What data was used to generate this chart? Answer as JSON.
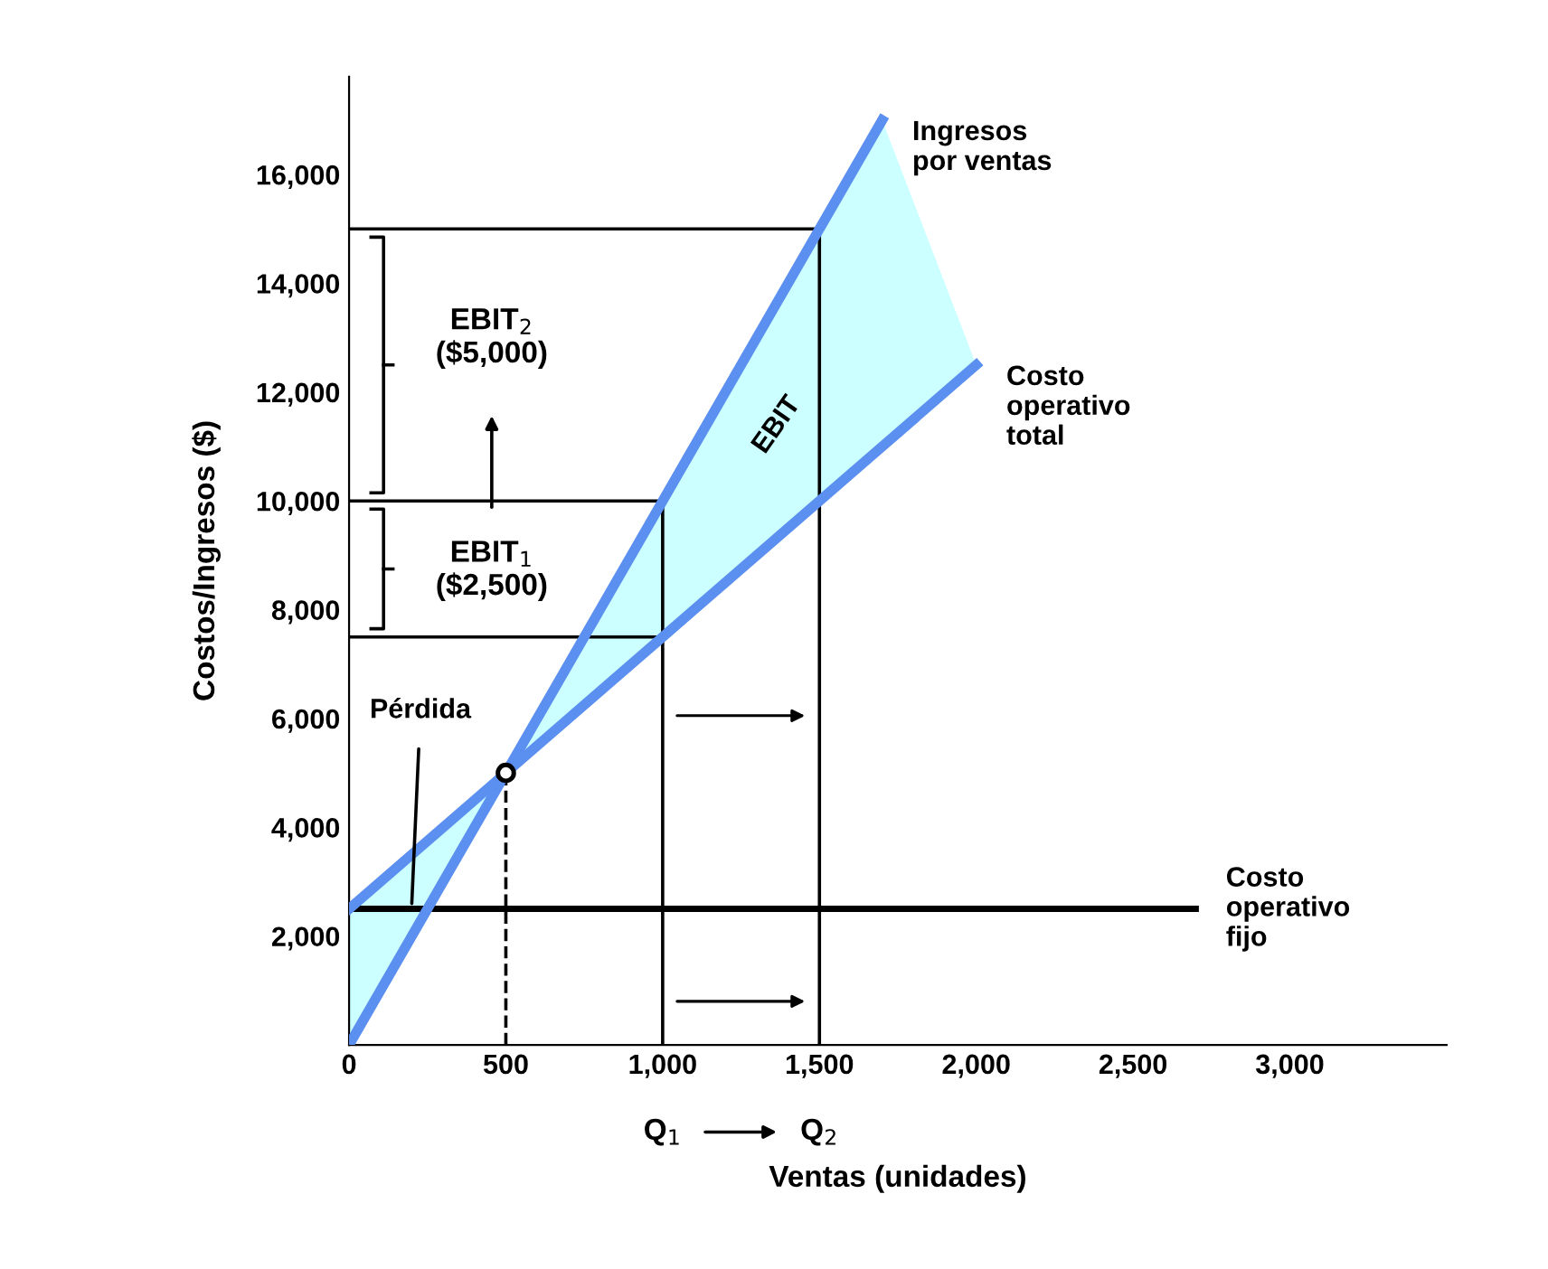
{
  "chart_data": {
    "type": "line",
    "xlabel": "Ventas (unidades)",
    "ylabel": "Costos/Ingresos ($)",
    "xlim": [
      0,
      3500
    ],
    "ylim": [
      0,
      17800
    ],
    "xticks": [
      0,
      500,
      {
        "value": 1000,
        "label": "1,000"
      },
      {
        "value": 1500,
        "label": "1,500"
      },
      {
        "value": 2000,
        "label": "2,000"
      },
      {
        "value": 2500,
        "label": "2,500"
      },
      {
        "value": 3000,
        "label": "3,000"
      }
    ],
    "yticks": [
      {
        "value": 2000,
        "label": "2,000"
      },
      {
        "value": 4000,
        "label": "4,000"
      },
      {
        "value": 6000,
        "label": "6,000"
      },
      {
        "value": 8000,
        "label": "8,000"
      },
      {
        "value": 10000,
        "label": "10,000"
      },
      {
        "value": 12000,
        "label": "12,000"
      },
      {
        "value": 14000,
        "label": "14,000"
      },
      {
        "value": 16000,
        "label": "16,000"
      }
    ],
    "grid": false,
    "legend": false,
    "series": [
      {
        "type": "area",
        "color": "#ccffff",
        "x": [
          0,
          500,
          0
        ],
        "values": [
          2500,
          5000,
          0
        ]
      },
      {
        "type": "area",
        "color": "#ccffff",
        "x": [
          500,
          1000,
          1500,
          1700,
          2000,
          1500,
          1000
        ],
        "values": [
          5000,
          10000,
          15000,
          17000,
          12500,
          10000,
          7500
        ]
      },
      {
        "color": "#000000",
        "x": [
          0,
          1500,
          1500
        ],
        "values": [
          15000,
          15000,
          0
        ]
      },
      {
        "color": "#000000",
        "x": [
          0,
          1000,
          1000
        ],
        "values": [
          10000,
          10000,
          0
        ]
      },
      {
        "color": "#000000",
        "x": [
          0,
          1000
        ],
        "values": [
          7500,
          7500
        ]
      },
      {
        "color": "#000000",
        "line_style": "dashed",
        "x": [
          500,
          500
        ],
        "values": [
          0,
          5000
        ]
      },
      {
        "name": "Costo\noperativo\nfijo",
        "color": "#000000",
        "x": [
          0,
          2700
        ],
        "values": [
          2500,
          2500
        ]
      },
      {
        "name": "Ingresos\npor ventas",
        "color": "#5b8ff0",
        "x": [
          0,
          500,
          1000,
          1500,
          1700
        ],
        "values": [
          0,
          5000,
          10000,
          15000,
          17000
        ]
      },
      {
        "name": "Costo\noperativo\ntotal",
        "color": "#5b8ff0",
        "x": [
          0,
          500,
          1000,
          1500,
          2000
        ],
        "values": [
          2500,
          5000,
          7500,
          10000,
          12500
        ]
      },
      {
        "type": "scatter",
        "marker": "circle",
        "color": "#000000",
        "x": [
          500
        ],
        "values": [
          5000
        ]
      }
    ],
    "annotations": [
      "EBIT",
      {
        "text": "Pérdida",
        "x": 200,
        "y": 2600
      },
      "EBIT$_{2}$\n($5,000)",
      "EBIT$_{1}$\n($2,500)",
      "Q$_{1}$",
      "Q$_{2}$"
    ]
  }
}
